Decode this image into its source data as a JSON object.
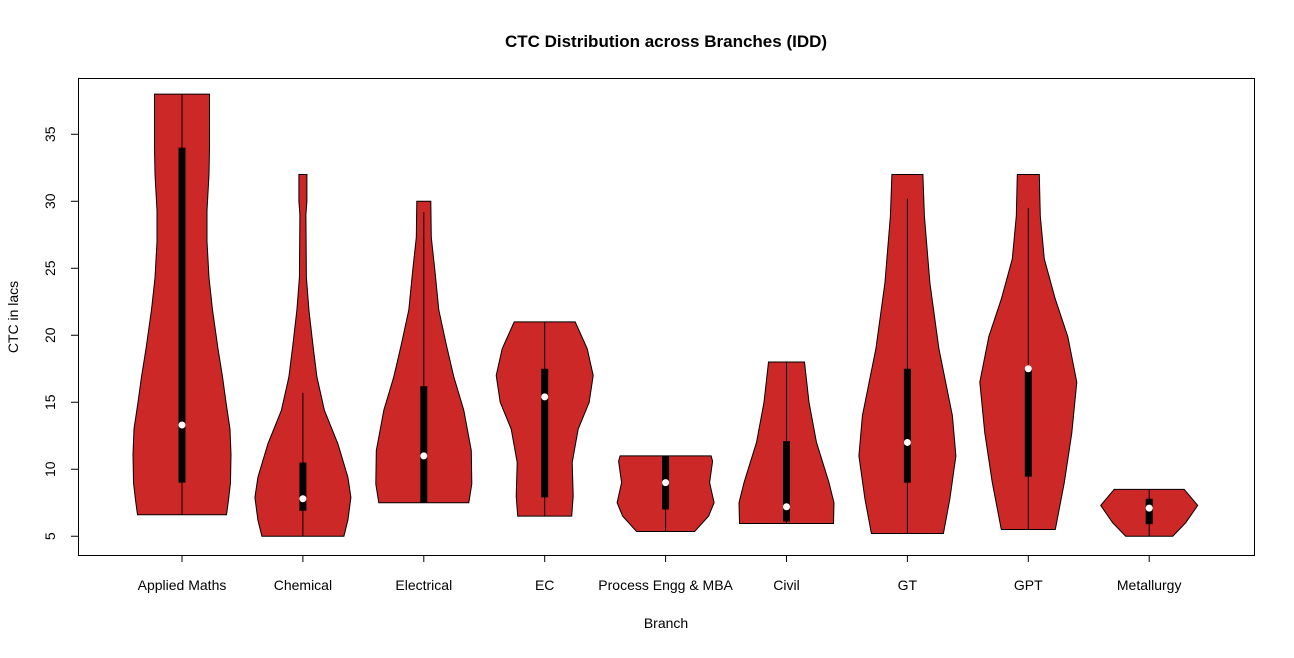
{
  "chart_data": {
    "type": "violin",
    "title": "CTC Distribution across Branches (IDD)",
    "xlabel": "Branch",
    "ylabel": "CTC in lacs",
    "ylim": [
      3.6,
      39.2
    ],
    "yticks": [
      "5",
      "10",
      "15",
      "20",
      "25",
      "30",
      "35"
    ],
    "grid": false,
    "fill_color": "#CC2828",
    "box_color": "#000000",
    "median_color": "#FFFFFF",
    "categories": [
      "Applied Maths",
      "Chemical",
      "Electrical",
      "EC",
      "Process Engg & MBA",
      "Civil",
      "GT",
      "GPT",
      "Metallurgy"
    ],
    "violins": [
      {
        "name": "Applied Maths",
        "min": 6.6,
        "max": 38,
        "q1": 9.0,
        "median": 13.3,
        "q3": 34.0,
        "whisker_low": 6.6,
        "whisker_high": 38,
        "density": [
          [
            6.6,
            0.89
          ],
          [
            7.7,
            0.93
          ],
          [
            9,
            0.97
          ],
          [
            11.1,
            0.98
          ],
          [
            13,
            0.96
          ],
          [
            15,
            0.88
          ],
          [
            16.9,
            0.81
          ],
          [
            19,
            0.72
          ],
          [
            21.9,
            0.61
          ],
          [
            24.3,
            0.54
          ],
          [
            27,
            0.5
          ],
          [
            29.3,
            0.5
          ],
          [
            32,
            0.54
          ],
          [
            34,
            0.55
          ],
          [
            38,
            0.55
          ]
        ]
      },
      {
        "name": "Chemical",
        "min": 5,
        "max": 32,
        "q1": 6.9,
        "median": 7.8,
        "q3": 10.5,
        "whisker_low": 5,
        "whisker_high": 15.7,
        "density": [
          [
            5,
            0.82
          ],
          [
            6.2,
            0.9
          ],
          [
            7.9,
            0.96
          ],
          [
            9.4,
            0.9
          ],
          [
            11.9,
            0.7
          ],
          [
            14.4,
            0.43
          ],
          [
            16.9,
            0.28
          ],
          [
            19.3,
            0.2
          ],
          [
            21.9,
            0.12
          ],
          [
            24.3,
            0.07
          ],
          [
            29,
            0.06
          ],
          [
            30,
            0.08
          ],
          [
            32,
            0.08
          ]
        ]
      },
      {
        "name": "Electrical",
        "min": 7.5,
        "max": 30,
        "q1": 7.5,
        "median": 11.0,
        "q3": 16.2,
        "whisker_low": 7.5,
        "whisker_high": 29.2,
        "density": [
          [
            7.5,
            0.9
          ],
          [
            8.9,
            0.96
          ],
          [
            11.4,
            0.95
          ],
          [
            14.4,
            0.8
          ],
          [
            16.9,
            0.6
          ],
          [
            19.3,
            0.45
          ],
          [
            21.9,
            0.3
          ],
          [
            24.9,
            0.22
          ],
          [
            27.3,
            0.15
          ],
          [
            30,
            0.14
          ]
        ]
      },
      {
        "name": "EC",
        "min": 6.5,
        "max": 21,
        "q1": 7.9,
        "median": 15.4,
        "q3": 17.5,
        "whisker_low": 6.5,
        "whisker_high": 21,
        "density": [
          [
            6.5,
            0.54
          ],
          [
            8,
            0.57
          ],
          [
            10.5,
            0.55
          ],
          [
            13,
            0.67
          ],
          [
            15,
            0.89
          ],
          [
            17,
            0.97
          ],
          [
            19,
            0.85
          ],
          [
            21,
            0.61
          ]
        ]
      },
      {
        "name": "Process Engg & MBA",
        "min": 5.35,
        "max": 11,
        "q1": 7.0,
        "median": 9.0,
        "q3": 11,
        "whisker_low": 5.35,
        "whisker_high": 11,
        "density": [
          [
            5.35,
            0.58
          ],
          [
            6.5,
            0.86
          ],
          [
            7.5,
            0.97
          ],
          [
            9,
            0.88
          ],
          [
            10.6,
            0.94
          ],
          [
            11,
            0.91
          ]
        ]
      },
      {
        "name": "Civil",
        "min": 5.95,
        "max": 18,
        "q1": 6.1,
        "median": 7.2,
        "q3": 12.1,
        "whisker_low": 5.95,
        "whisker_high": 18,
        "density": [
          [
            5.95,
            0.94
          ],
          [
            7.5,
            0.95
          ],
          [
            9,
            0.85
          ],
          [
            12,
            0.6
          ],
          [
            15,
            0.45
          ],
          [
            18,
            0.36
          ]
        ]
      },
      {
        "name": "GT",
        "min": 5.2,
        "max": 32,
        "q1": 9.0,
        "median": 12.0,
        "q3": 17.5,
        "whisker_low": 5.2,
        "whisker_high": 30.2,
        "density": [
          [
            5.2,
            0.72
          ],
          [
            7.8,
            0.85
          ],
          [
            11,
            0.97
          ],
          [
            14,
            0.9
          ],
          [
            19,
            0.63
          ],
          [
            23.9,
            0.45
          ],
          [
            28.9,
            0.34
          ],
          [
            32,
            0.31
          ]
        ]
      },
      {
        "name": "GPT",
        "min": 5.5,
        "max": 32,
        "q1": 9.45,
        "median": 17.5,
        "q3": 17.5,
        "whisker_low": 5.5,
        "whisker_high": 29.5,
        "density": [
          [
            5.5,
            0.54
          ],
          [
            9,
            0.72
          ],
          [
            12.7,
            0.87
          ],
          [
            16.5,
            0.97
          ],
          [
            19.9,
            0.79
          ],
          [
            22.7,
            0.54
          ],
          [
            25.7,
            0.32
          ],
          [
            28.9,
            0.24
          ],
          [
            32,
            0.22
          ]
        ]
      },
      {
        "name": "Metallurgy",
        "min": 5,
        "max": 8.5,
        "q1": 5.9,
        "median": 7.1,
        "q3": 7.8,
        "whisker_low": 5,
        "whisker_high": 8.5,
        "density": [
          [
            5,
            0.47
          ],
          [
            6,
            0.73
          ],
          [
            7.3,
            0.97
          ],
          [
            8.5,
            0.7
          ]
        ]
      }
    ]
  }
}
